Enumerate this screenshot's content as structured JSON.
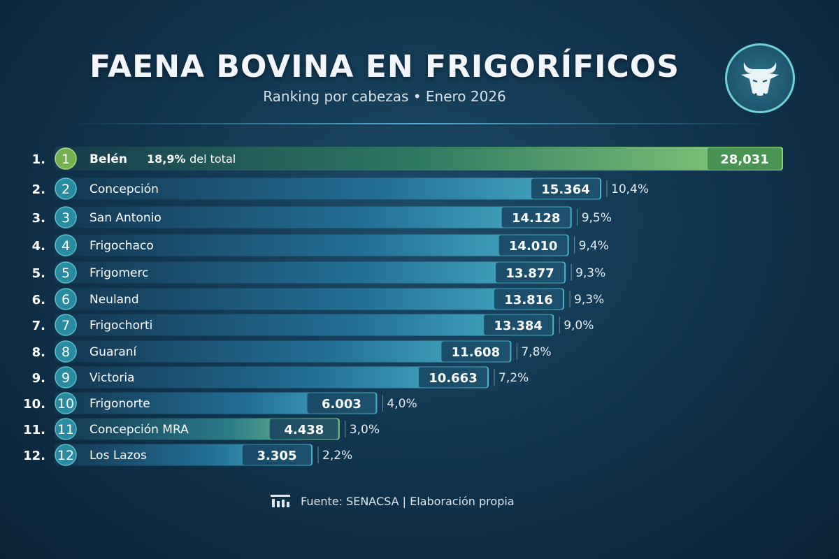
{
  "header": {
    "title": "FAENA BOVINA EN FRIGORÍFICOS",
    "subtitle": "Ranking por cabezas • Enero 2026",
    "logo_icon": "bull-head-icon"
  },
  "chart_data": {
    "type": "bar",
    "orientation": "horizontal",
    "categories": [
      "Belén",
      "Concepción",
      "San Antonio",
      "Frigochaco",
      "Frigomerc",
      "Neuland",
      "Frigochorti",
      "Guaraní",
      "Victoria",
      "Frigonorte",
      "Concepción MRA",
      "Los Lazos"
    ],
    "ranks": [
      "1.",
      "2.",
      "3.",
      "4.",
      "5.",
      "6.",
      "7.",
      "8.",
      "9.",
      "10.",
      "11.",
      "12."
    ],
    "badges": [
      "1",
      "2",
      "3",
      "4",
      "5",
      "6",
      "7",
      "8",
      "9",
      "10",
      "11",
      "12"
    ],
    "values": [
      28031,
      15364,
      14128,
      14010,
      13877,
      13816,
      13384,
      11608,
      10663,
      6003,
      4438,
      3305
    ],
    "value_labels": [
      "28,031",
      "15.364",
      "14.128",
      "14.010",
      "13.877",
      "13.816",
      "13.384",
      "11.608",
      "10.663",
      "6.003",
      "4.438",
      "3.305"
    ],
    "percent_labels": [
      "18,9%",
      "10,4%",
      "9,5%",
      "9,4%",
      "9,3%",
      "9,3%",
      "9,0%",
      "7,8%",
      "7,2%",
      "4,0%",
      "3,0%",
      "2,2%"
    ],
    "top_note": "del total",
    "colors": {
      "green": "#6fb85a",
      "blue": "#2a8db0",
      "highlight": "#7bd1c0"
    }
  },
  "footer": {
    "source": "Fuente: SENACSA | Elaboración propia",
    "icon": "building-chart-icon"
  }
}
